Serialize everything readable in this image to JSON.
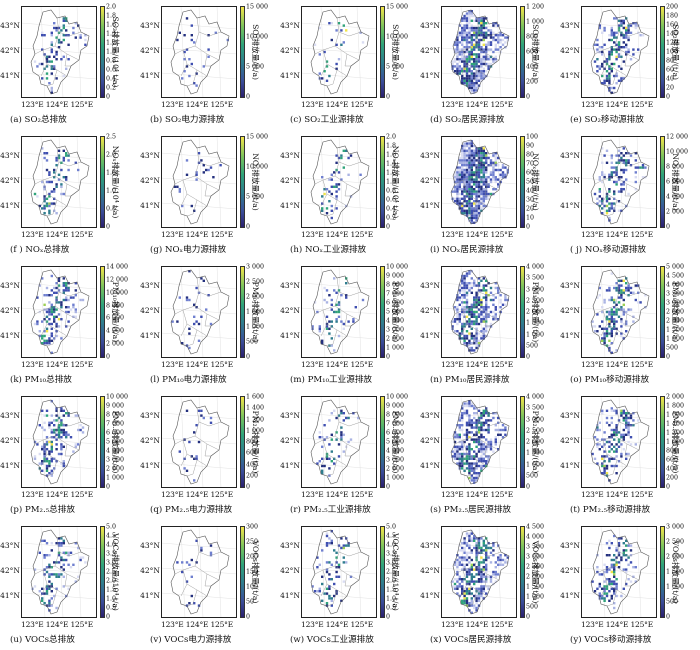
{
  "latitude_labels": [
    "43°N",
    "42°N",
    "41°N"
  ],
  "longitude_label": "123°E 124°E 125°E",
  "pollutants": [
    {
      "name": "SO2",
      "total_unit": "SO₂排放量/(10⁴ t/a)",
      "sector_unit": "SO₂排放量/(t/a)"
    },
    {
      "name": "NOx",
      "total_unit": "NOₓ排放量/(10⁴ t/a)",
      "sector_unit": "NOₓ排放量/(t/a)"
    },
    {
      "name": "PM10",
      "total_unit": "PM₁₀排放量/(t/a)",
      "sector_unit": "PM₁₀排放量/(t/a)"
    },
    {
      "name": "PM2.5",
      "total_unit": "PM₂.₅排放量/(t/a)",
      "sector_unit": "PM₂.₅排放量/(t/a)"
    },
    {
      "name": "VOCs",
      "total_unit": "VOCs排放量/(10⁴ t/a)",
      "sector_unit": "VOCs排放量/(t/a)"
    }
  ],
  "panels": [
    {
      "caption": "(a)  SO₂总排放",
      "cbar_label": "SO₂排放量/(10⁴ t/a)",
      "ticks": [
        "2.0",
        "1.8",
        "1.6",
        "1.4",
        "1.2",
        "1.0",
        "0.8",
        "0.6",
        "0.4",
        "0.2",
        "0"
      ],
      "sector": "total",
      "density": 0.18,
      "zero_first": true
    },
    {
      "caption": "(b)  SO₂电力源排放",
      "cbar_label": "SO₂排放量/(t/a)",
      "ticks": [
        "15 000",
        "10 000",
        "5 000",
        "0"
      ],
      "sector": "power",
      "density": 0.05
    },
    {
      "caption": "(c)  SO₂工业源排放",
      "cbar_label": "SO₂排放量/(t/a)",
      "ticks": [
        "15 000",
        "10 000",
        "5 000",
        "0"
      ],
      "sector": "industry",
      "density": 0.09
    },
    {
      "caption": "(d)  SO₂居民源排放",
      "cbar_label": "SO₂排放量/(t/a)",
      "ticks": [
        "1 200",
        "1 000",
        "800",
        "600",
        "400",
        "200",
        "0"
      ],
      "sector": "residential",
      "density": 0.55
    },
    {
      "caption": "(e)  SO₂移动源排放",
      "cbar_label": "SO₂排放量/(t/a)",
      "ticks": [
        "200",
        "180",
        "160",
        "140",
        "120",
        "100",
        "80",
        "60",
        "40",
        "20",
        "0"
      ],
      "sector": "mobile",
      "density": 0.32
    },
    {
      "caption": "(f )  NOₓ总排放",
      "cbar_label": "NOₓ排放量/(10⁴ t/a)",
      "ticks": [
        "2.5",
        "2.0",
        "1.5",
        "1.0",
        "0.5",
        "0"
      ],
      "sector": "total",
      "density": 0.2
    },
    {
      "caption": "(g)  NOₓ电力源排放",
      "cbar_label": "NOₓ排放量/(t/a)",
      "ticks": [
        "15 000",
        "10 000",
        "5 000",
        "0"
      ],
      "sector": "power",
      "density": 0.05
    },
    {
      "caption": "(h)  NOₓ工业源排放",
      "cbar_label": "NOₓ排放量/(10⁴ t/a)",
      "ticks": [
        "2.0",
        "1.8",
        "1.6",
        "1.4",
        "1.2",
        "1.0",
        "0.8",
        "0.6",
        "0.4",
        "0.2",
        "0"
      ],
      "sector": "industry",
      "density": 0.1
    },
    {
      "caption": "(i)  NOₓ居民源排放",
      "cbar_label": "NOₓ排放量/(t/a)",
      "ticks": [
        "100",
        "90",
        "80",
        "70",
        "60",
        "50",
        "40",
        "30",
        "20",
        "10",
        "0"
      ],
      "sector": "residential",
      "density": 0.62
    },
    {
      "caption": "( j)  NOₓ移动源排放",
      "cbar_label": "NOₓ排放量/(t/a)",
      "ticks": [
        "12 000",
        "10 000",
        "8 000",
        "6 000",
        "4 000",
        "2 000",
        "0"
      ],
      "sector": "mobile",
      "density": 0.3
    },
    {
      "caption": "(k)  PM₁₀总排放",
      "cbar_label": "PM₁₀排放量/(t/a)",
      "ticks": [
        "14 000",
        "12 000",
        "10 000",
        "8 000",
        "6 000",
        "4 000",
        "2 000",
        "0"
      ],
      "sector": "total",
      "density": 0.28
    },
    {
      "caption": "(l)  PM₁₀电力源排放",
      "cbar_label": "PM₁₀排放量/(t/a)",
      "ticks": [
        "3 000",
        "2 500",
        "2 000",
        "1 500",
        "1 000",
        "500",
        "0"
      ],
      "sector": "power",
      "density": 0.05
    },
    {
      "caption": "(m)  PM₁₀工业源排放",
      "cbar_label": "PM₁₀排放量/(t/a)",
      "ticks": [
        "10 000",
        "9 000",
        "8 000",
        "7 000",
        "6 000",
        "5 000",
        "4 000",
        "3 000",
        "2 000",
        "1 000",
        "0"
      ],
      "sector": "industry",
      "density": 0.14
    },
    {
      "caption": "(n)  PM₁₀居民源排放",
      "cbar_label": "PM₁₀排放量/(t/a)",
      "ticks": [
        "4 000",
        "3 500",
        "3 000",
        "2 500",
        "2 000",
        "1 500",
        "1 000",
        "500",
        "0"
      ],
      "sector": "residential",
      "density": 0.45
    },
    {
      "caption": "(o)  PM₁₀移动源排放",
      "cbar_label": "PM₁₀排放量/(t/a)",
      "ticks": [
        "5 000",
        "4 500",
        "4 000",
        "3 500",
        "3 000",
        "2 500",
        "2 000",
        "1 500",
        "1 000",
        "500",
        "0"
      ],
      "sector": "mobile",
      "density": 0.35
    },
    {
      "caption": "(p)  PM₂.₅总排放",
      "cbar_label": "PM₂.₅排放量/(t/a)",
      "ticks": [
        "10 000",
        "9 000",
        "8 000",
        "7 000",
        "6 000",
        "5 000",
        "4 000",
        "3 000",
        "2 000",
        "1 000",
        "0"
      ],
      "sector": "total",
      "density": 0.3
    },
    {
      "caption": "(q)  PM₂.₅电力源排放",
      "cbar_label": "PM₂.₅排放量/(t/a)",
      "ticks": [
        "1 600",
        "1 400",
        "1 200",
        "1 000",
        "800",
        "600",
        "400",
        "200",
        "0"
      ],
      "sector": "power",
      "density": 0.05
    },
    {
      "caption": "(r)  PM₂.₅工业源排放",
      "cbar_label": "PM₂.₅排放量/(t/a)",
      "ticks": [
        "10 000",
        "9 000",
        "8 000",
        "7 000",
        "6 000",
        "5 000",
        "4 000",
        "3 000",
        "2 000",
        "1 000",
        "0"
      ],
      "sector": "industry",
      "density": 0.14
    },
    {
      "caption": "(s)  PM₂.₅居民源排放",
      "cbar_label": "PM₂.₅排放量/(t/a)",
      "ticks": [
        "4 000",
        "3 500",
        "3 000",
        "2 500",
        "2 000",
        "1 500",
        "1 000",
        "500",
        "0"
      ],
      "sector": "residential",
      "density": 0.45
    },
    {
      "caption": "(t)  PM₂.₅移动源排放",
      "cbar_label": "PM₂.₅排放量/(t/a)",
      "ticks": [
        "2 000",
        "1 800",
        "1 600",
        "1 400",
        "1 200",
        "1 000",
        "800",
        "600",
        "400",
        "200",
        "0"
      ],
      "sector": "mobile",
      "density": 0.33
    },
    {
      "caption": "(u)  VOCs总排放",
      "cbar_label": "VOCs排放量/(10⁴ t/a)",
      "ticks": [
        "5.0",
        "4.5",
        "4.0",
        "3.5",
        "3.0",
        "2.5",
        "2.0",
        "1.5",
        "1.0",
        "0.5",
        "0"
      ],
      "sector": "total",
      "density": 0.22
    },
    {
      "caption": "(v)  VOCs电力源排放",
      "cbar_label": "VOCs排放量/(t/a)",
      "ticks": [
        "300",
        "250",
        "200",
        "150",
        "100",
        "50",
        "0"
      ],
      "sector": "power",
      "density": 0.05
    },
    {
      "caption": "(w)  VOCs工业源排放",
      "cbar_label": "VOCs排放量/(10⁴ t/a)",
      "ticks": [
        "5.0",
        "4.5",
        "4.0",
        "3.5",
        "3.0",
        "2.5",
        "2.0",
        "1.5",
        "1.0",
        "0.5",
        "0"
      ],
      "sector": "industry",
      "density": 0.15
    },
    {
      "caption": "(x)  VOCs居民源排放",
      "cbar_label": "VOCs排放量/(t/a)",
      "ticks": [
        "4 500",
        "4 000",
        "3 500",
        "3 000",
        "2 500",
        "2 000",
        "1 500",
        "1 000",
        "500",
        "0"
      ],
      "sector": "residential",
      "density": 0.42
    },
    {
      "caption": "(y)  VOCs移动源排放",
      "cbar_label": "VOCs排放量/(t/a)",
      "ticks": [
        "3 000",
        "2 500",
        "2 000",
        "1 500",
        "1 000",
        "500",
        "0"
      ],
      "sector": "mobile",
      "density": 0.3
    }
  ]
}
